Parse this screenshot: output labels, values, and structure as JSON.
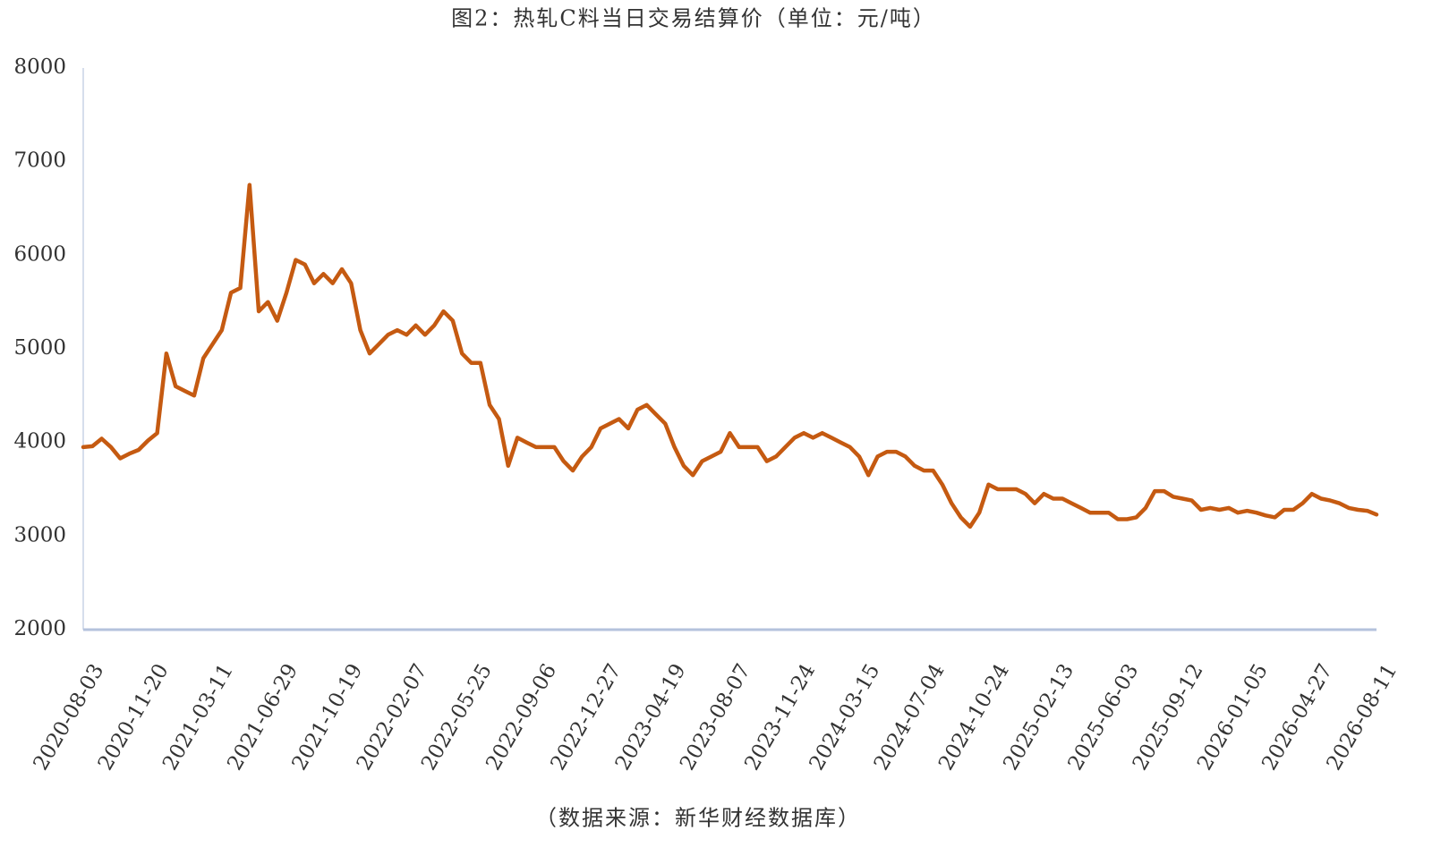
{
  "chart_data": {
    "type": "line",
    "title": "图2：热轧C料当日交易结算价（单位：元/吨）",
    "source": "（数据来源：新华财经数据库）",
    "color": "#c55a11",
    "grid": false,
    "ylim": [
      2000,
      8000
    ],
    "yticks": [
      2000,
      3000,
      4000,
      5000,
      6000,
      7000,
      8000
    ],
    "categories": [
      "2020-08-03",
      null,
      null,
      null,
      null,
      null,
      null,
      "2020-11-20",
      null,
      null,
      null,
      null,
      null,
      null,
      "2021-03-11",
      null,
      null,
      null,
      null,
      null,
      null,
      "2021-06-29",
      null,
      null,
      null,
      null,
      null,
      null,
      "2021-10-19",
      null,
      null,
      null,
      null,
      null,
      null,
      "2022-02-07",
      null,
      null,
      null,
      null,
      null,
      null,
      "2022-05-25",
      null,
      null,
      null,
      null,
      null,
      null,
      "2022-09-06",
      null,
      null,
      null,
      null,
      null,
      null,
      "2022-12-27",
      null,
      null,
      null,
      null,
      null,
      null,
      "2023-04-19",
      null,
      null,
      null,
      null,
      null,
      null,
      "2023-08-07",
      null,
      null,
      null,
      null,
      null,
      null,
      "2023-11-24",
      null,
      null,
      null,
      null,
      null,
      null,
      "2024-03-15",
      null,
      null,
      null,
      null,
      null,
      null,
      "2024-07-04",
      null,
      null,
      null,
      null,
      null,
      null,
      "2024-10-24",
      null,
      null,
      null,
      null,
      null,
      null,
      "2025-02-13",
      null,
      null,
      null,
      null,
      null,
      null,
      "2025-06-03",
      null,
      null,
      null,
      null,
      null,
      null,
      "2025-09-12",
      null,
      null,
      null,
      null,
      null,
      null,
      "2026-01-05",
      null,
      null,
      null,
      null,
      null,
      null,
      "2026-04-27",
      null,
      null,
      null,
      null,
      null,
      null,
      "2026-08-11"
    ],
    "values": [
      3950,
      3960,
      4040,
      3950,
      3830,
      3880,
      3920,
      4020,
      4100,
      4950,
      4600,
      4550,
      4500,
      4900,
      5050,
      5200,
      5600,
      5650,
      6750,
      5400,
      5500,
      5300,
      5600,
      5950,
      5900,
      5700,
      5800,
      5700,
      5850,
      5700,
      5200,
      4950,
      5050,
      5150,
      5200,
      5150,
      5250,
      5150,
      5250,
      5400,
      5300,
      4950,
      4850,
      4850,
      4400,
      4250,
      3750,
      4050,
      4000,
      3950,
      3950,
      3950,
      3800,
      3700,
      3850,
      3950,
      4150,
      4200,
      4250,
      4150,
      4350,
      4400,
      4300,
      4200,
      3950,
      3750,
      3650,
      3800,
      3850,
      3900,
      4100,
      3950,
      3950,
      3950,
      3800,
      3850,
      3950,
      4050,
      4100,
      4050,
      4100,
      4050,
      4000,
      3950,
      3850,
      3650,
      3850,
      3900,
      3900,
      3850,
      3750,
      3700,
      3700,
      3550,
      3350,
      3200,
      3100,
      3250,
      3550,
      3500,
      3500,
      3500,
      3450,
      3350,
      3450,
      3400,
      3400,
      3350,
      3300,
      3250,
      3250,
      3250,
      3180,
      3180,
      3200,
      3300,
      3480,
      3480,
      3420,
      3400,
      3380,
      3280,
      3300,
      3280,
      3300,
      3250,
      3270,
      3250,
      3220,
      3200,
      3280,
      3280,
      3350,
      3450,
      3400,
      3380,
      3350,
      3300,
      3280,
      3270,
      3230
    ]
  }
}
